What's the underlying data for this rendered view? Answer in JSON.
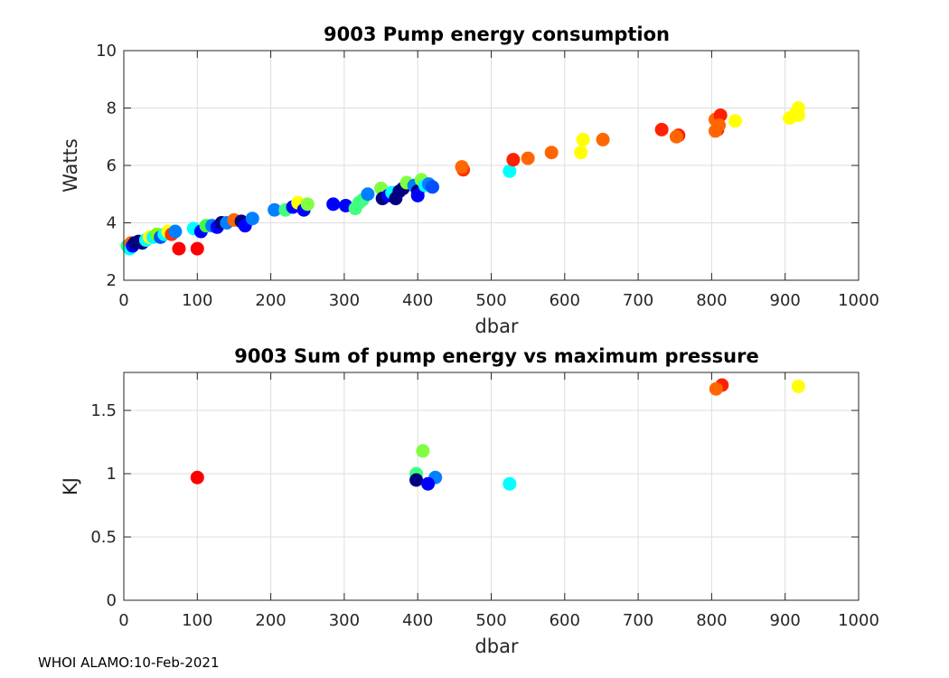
{
  "chart_data": [
    {
      "type": "scatter",
      "title": "9003 Pump energy consumption",
      "xlabel": "dbar",
      "ylabel": "Watts",
      "xlim": [
        0,
        1000
      ],
      "ylim": [
        2,
        10
      ],
      "xticks": [
        "0",
        "100",
        "200",
        "300",
        "400",
        "500",
        "600",
        "700",
        "800",
        "900",
        "1000"
      ],
      "yticks": [
        "2",
        "4",
        "6",
        "8",
        "10"
      ],
      "grid": true,
      "points": [
        {
          "x": 5,
          "y": 3.2,
          "c": "#22ff88"
        },
        {
          "x": 8,
          "y": 3.1,
          "c": "#00ffff"
        },
        {
          "x": 10,
          "y": 3.3,
          "c": "#ff6600"
        },
        {
          "x": 12,
          "y": 3.2,
          "c": "#0000ff"
        },
        {
          "x": 15,
          "y": 3.3,
          "c": "#000080"
        },
        {
          "x": 20,
          "y": 3.35,
          "c": "#000080"
        },
        {
          "x": 25,
          "y": 3.3,
          "c": "#000080"
        },
        {
          "x": 30,
          "y": 3.4,
          "c": "#00ffff"
        },
        {
          "x": 35,
          "y": 3.5,
          "c": "#ffff00"
        },
        {
          "x": 40,
          "y": 3.5,
          "c": "#00ffff"
        },
        {
          "x": 45,
          "y": 3.6,
          "c": "#80ff00"
        },
        {
          "x": 50,
          "y": 3.5,
          "c": "#0050ff"
        },
        {
          "x": 55,
          "y": 3.6,
          "c": "#00ffff"
        },
        {
          "x": 60,
          "y": 3.7,
          "c": "#ffff00"
        },
        {
          "x": 65,
          "y": 3.6,
          "c": "#ff3300"
        },
        {
          "x": 70,
          "y": 3.7,
          "c": "#0080ff"
        },
        {
          "x": 75,
          "y": 3.1,
          "c": "#ff0000"
        },
        {
          "x": 100,
          "y": 3.1,
          "c": "#ff0000"
        },
        {
          "x": 95,
          "y": 3.8,
          "c": "#00ffff"
        },
        {
          "x": 105,
          "y": 3.7,
          "c": "#0000ff"
        },
        {
          "x": 112,
          "y": 3.9,
          "c": "#40ff40"
        },
        {
          "x": 120,
          "y": 3.9,
          "c": "#0080ff"
        },
        {
          "x": 127,
          "y": 3.85,
          "c": "#0000ff"
        },
        {
          "x": 133,
          "y": 4.0,
          "c": "#000080"
        },
        {
          "x": 140,
          "y": 4.0,
          "c": "#0080ff"
        },
        {
          "x": 150,
          "y": 4.1,
          "c": "#ff6600"
        },
        {
          "x": 160,
          "y": 4.05,
          "c": "#000080"
        },
        {
          "x": 165,
          "y": 3.9,
          "c": "#0000ff"
        },
        {
          "x": 175,
          "y": 4.15,
          "c": "#0080ff"
        },
        {
          "x": 205,
          "y": 4.45,
          "c": "#0080ff"
        },
        {
          "x": 220,
          "y": 4.45,
          "c": "#40ff80"
        },
        {
          "x": 230,
          "y": 4.55,
          "c": "#0000ff"
        },
        {
          "x": 237,
          "y": 4.7,
          "c": "#ffff00"
        },
        {
          "x": 245,
          "y": 4.45,
          "c": "#0000ff"
        },
        {
          "x": 250,
          "y": 4.65,
          "c": "#80ff40"
        },
        {
          "x": 285,
          "y": 4.65,
          "c": "#0000ff"
        },
        {
          "x": 302,
          "y": 4.6,
          "c": "#0000ff"
        },
        {
          "x": 315,
          "y": 4.5,
          "c": "#40ff80"
        },
        {
          "x": 320,
          "y": 4.7,
          "c": "#40ff80"
        },
        {
          "x": 325,
          "y": 4.8,
          "c": "#40ff80"
        },
        {
          "x": 332,
          "y": 5.0,
          "c": "#0080ff"
        },
        {
          "x": 350,
          "y": 5.2,
          "c": "#80ff40"
        },
        {
          "x": 352,
          "y": 4.85,
          "c": "#000080"
        },
        {
          "x": 360,
          "y": 4.95,
          "c": "#0000ff"
        },
        {
          "x": 365,
          "y": 5.05,
          "c": "#00ffff"
        },
        {
          "x": 370,
          "y": 4.85,
          "c": "#000080"
        },
        {
          "x": 375,
          "y": 5.1,
          "c": "#000080"
        },
        {
          "x": 380,
          "y": 5.2,
          "c": "#000080"
        },
        {
          "x": 385,
          "y": 5.4,
          "c": "#80ff40"
        },
        {
          "x": 395,
          "y": 5.3,
          "c": "#0080ff"
        },
        {
          "x": 400,
          "y": 5.1,
          "c": "#000080"
        },
        {
          "x": 400,
          "y": 4.95,
          "c": "#0000ff"
        },
        {
          "x": 405,
          "y": 5.5,
          "c": "#80ff40"
        },
        {
          "x": 410,
          "y": 5.3,
          "c": "#00ffff"
        },
        {
          "x": 415,
          "y": 5.35,
          "c": "#0080ff"
        },
        {
          "x": 420,
          "y": 5.25,
          "c": "#0050ff"
        },
        {
          "x": 462,
          "y": 5.85,
          "c": "#ff3300"
        },
        {
          "x": 460,
          "y": 5.95,
          "c": "#ff6600"
        },
        {
          "x": 525,
          "y": 5.8,
          "c": "#00ffff"
        },
        {
          "x": 530,
          "y": 6.2,
          "c": "#ff2000"
        },
        {
          "x": 550,
          "y": 6.25,
          "c": "#ff6600"
        },
        {
          "x": 582,
          "y": 6.45,
          "c": "#ff6600"
        },
        {
          "x": 622,
          "y": 6.45,
          "c": "#ffff00"
        },
        {
          "x": 625,
          "y": 6.9,
          "c": "#ffff00"
        },
        {
          "x": 652,
          "y": 6.9,
          "c": "#ff6600"
        },
        {
          "x": 732,
          "y": 7.25,
          "c": "#ff2000"
        },
        {
          "x": 755,
          "y": 7.05,
          "c": "#ff2000"
        },
        {
          "x": 752,
          "y": 7.0,
          "c": "#ff6600"
        },
        {
          "x": 805,
          "y": 7.6,
          "c": "#ff6600"
        },
        {
          "x": 812,
          "y": 7.75,
          "c": "#ff2000"
        },
        {
          "x": 808,
          "y": 7.25,
          "c": "#ff2000"
        },
        {
          "x": 805,
          "y": 7.2,
          "c": "#ff6600"
        },
        {
          "x": 810,
          "y": 7.4,
          "c": "#ff6600"
        },
        {
          "x": 832,
          "y": 7.55,
          "c": "#ffff00"
        },
        {
          "x": 906,
          "y": 7.65,
          "c": "#ffff00"
        },
        {
          "x": 915,
          "y": 7.85,
          "c": "#ffff00"
        },
        {
          "x": 918,
          "y": 8.0,
          "c": "#ffff00"
        },
        {
          "x": 918,
          "y": 7.75,
          "c": "#ffff00"
        }
      ]
    },
    {
      "type": "scatter",
      "title": "9003 Sum of pump energy vs maximum pressure",
      "xlabel": "dbar",
      "ylabel": "KJ",
      "xlim": [
        0,
        1000
      ],
      "ylim": [
        0,
        1.8
      ],
      "xticks": [
        "0",
        "100",
        "200",
        "300",
        "400",
        "500",
        "600",
        "700",
        "800",
        "900",
        "1000"
      ],
      "yticks": [
        "0",
        "0.5",
        "1",
        "1.5"
      ],
      "ytick_values": [
        0,
        0.5,
        1,
        1.5
      ],
      "grid": true,
      "points": [
        {
          "x": 100,
          "y": 0.97,
          "c": "#ff0000"
        },
        {
          "x": 398,
          "y": 1.0,
          "c": "#40ff80"
        },
        {
          "x": 407,
          "y": 1.18,
          "c": "#80ff40"
        },
        {
          "x": 424,
          "y": 0.97,
          "c": "#0080ff"
        },
        {
          "x": 398,
          "y": 0.95,
          "c": "#000080"
        },
        {
          "x": 414,
          "y": 0.92,
          "c": "#0000ff"
        },
        {
          "x": 525,
          "y": 0.92,
          "c": "#00ffff"
        },
        {
          "x": 814,
          "y": 1.7,
          "c": "#ff2000"
        },
        {
          "x": 806,
          "y": 1.67,
          "c": "#ff6600"
        },
        {
          "x": 918,
          "y": 1.69,
          "c": "#ffff00"
        }
      ]
    }
  ],
  "footer": "WHOI ALAMO:10-Feb-2021"
}
